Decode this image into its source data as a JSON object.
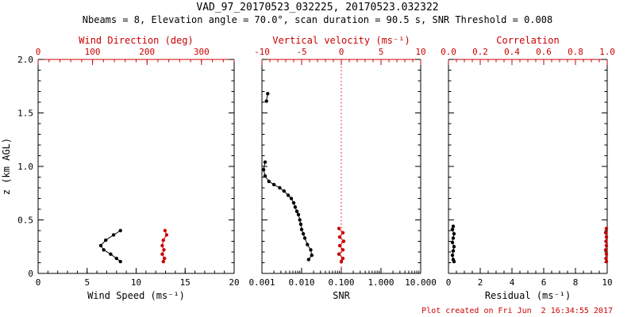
{
  "header": {
    "title": "VAD_97_20170523_032225, 20170523.032322",
    "subtitle": "Nbeams = 8, Elevation angle = 70.0°, scan duration = 90.5 s, SNR Threshold = 0.008"
  },
  "footer": {
    "created": "Plot created on Fri Jun  2 16:34:55 2017"
  },
  "colors": {
    "axis": "#000000",
    "secondary": "#cc0000",
    "background": "#ffffff"
  },
  "yaxis": {
    "label": "z (km AGL)",
    "lim": [
      0,
      2
    ],
    "minor_step": 0.1,
    "ticks": [
      {
        "v": 0,
        "l": "0"
      },
      {
        "v": 0.5,
        "l": "0.5"
      },
      {
        "v": 1,
        "l": "1.0"
      },
      {
        "v": 1.5,
        "l": "1.5"
      },
      {
        "v": 2,
        "l": "2.0"
      }
    ]
  },
  "chart_data": [
    {
      "type": "line",
      "panel": "wind",
      "show_ylabels": true,
      "bottom": {
        "label": "Wind Speed (ms⁻¹)",
        "scale": "linear",
        "lim": [
          0,
          20
        ],
        "minor_step": 1,
        "ticks": [
          {
            "v": 0,
            "l": "0"
          },
          {
            "v": 5,
            "l": "5"
          },
          {
            "v": 10,
            "l": "10"
          },
          {
            "v": 15,
            "l": "15"
          },
          {
            "v": 20,
            "l": "20"
          }
        ]
      },
      "top": {
        "label": "Wind Direction (deg)",
        "scale": "linear",
        "lim": [
          0,
          360
        ],
        "minor_step": 20,
        "ticks": [
          {
            "v": 0,
            "l": "0"
          },
          {
            "v": 100,
            "l": "100"
          },
          {
            "v": 200,
            "l": "200"
          },
          {
            "v": 300,
            "l": "300"
          }
        ]
      },
      "series": [
        {
          "name": "wind-speed",
          "axis": "bottom",
          "color": "#000000",
          "segments": [
            [
              [
                8.4,
                0.4
              ],
              [
                7.7,
                0.36
              ],
              [
                6.9,
                0.31
              ],
              [
                6.4,
                0.26
              ],
              [
                6.7,
                0.22
              ],
              [
                7.4,
                0.18
              ],
              [
                8.0,
                0.14
              ],
              [
                8.4,
                0.11
              ]
            ]
          ]
        },
        {
          "name": "wind-direction",
          "axis": "top",
          "color": "#cc0000",
          "segments": [
            [
              [
                233,
                0.4
              ],
              [
                236,
                0.36
              ],
              [
                230,
                0.31
              ],
              [
                228,
                0.26
              ],
              [
                231,
                0.22
              ],
              [
                228,
                0.18
              ],
              [
                232,
                0.14
              ],
              [
                230,
                0.11
              ]
            ]
          ]
        }
      ]
    },
    {
      "type": "line",
      "panel": "snr",
      "show_ylabels": false,
      "bottom": {
        "label": "SNR",
        "scale": "log",
        "lim": [
          0.001,
          10
        ],
        "ticks": [
          {
            "v": 0.001,
            "l": "0.001"
          },
          {
            "v": 0.01,
            "l": "0.010"
          },
          {
            "v": 0.1,
            "l": "0.100"
          },
          {
            "v": 1,
            "l": "1.000"
          },
          {
            "v": 10,
            "l": "10.000"
          }
        ]
      },
      "top": {
        "label": "Vertical velocity (ms⁻¹)",
        "scale": "linear",
        "lim": [
          -10,
          10
        ],
        "minor_step": 1,
        "ticks": [
          {
            "v": -10,
            "l": "-10"
          },
          {
            "v": -5,
            "l": "-5"
          },
          {
            "v": 0,
            "l": "0"
          },
          {
            "v": 5,
            "l": "5"
          },
          {
            "v": 10,
            "l": "10"
          }
        ]
      },
      "ref_line": {
        "axis": "top",
        "value": 0,
        "style": "dotted"
      },
      "series": [
        {
          "name": "snr-profile",
          "axis": "bottom",
          "color": "#000000",
          "segments": [
            [
              [
                0.0014,
                1.68
              ],
              [
                0.0013,
                1.61
              ]
            ],
            [
              [
                0.0012,
                1.04
              ],
              [
                0.0011,
                0.97
              ],
              [
                0.0012,
                0.91
              ],
              [
                0.0015,
                0.86
              ],
              [
                0.002,
                0.83
              ],
              [
                0.0028,
                0.8
              ],
              [
                0.0036,
                0.77
              ],
              [
                0.0046,
                0.73
              ],
              [
                0.0055,
                0.7
              ],
              [
                0.0063,
                0.66
              ],
              [
                0.0069,
                0.62
              ],
              [
                0.0076,
                0.58
              ],
              [
                0.0083,
                0.55
              ],
              [
                0.009,
                0.5
              ],
              [
                0.0095,
                0.46
              ],
              [
                0.01,
                0.41
              ],
              [
                0.011,
                0.37
              ],
              [
                0.012,
                0.33
              ],
              [
                0.014,
                0.27
              ],
              [
                0.017,
                0.22
              ],
              [
                0.018,
                0.17
              ],
              [
                0.015,
                0.13
              ]
            ]
          ]
        },
        {
          "name": "vertical-velocity",
          "axis": "top",
          "color": "#cc0000",
          "segments": [
            [
              [
                -0.3,
                0.42
              ],
              [
                0.2,
                0.38
              ],
              [
                -0.2,
                0.34
              ],
              [
                0.3,
                0.3
              ],
              [
                -0.2,
                0.26
              ],
              [
                0.2,
                0.22
              ],
              [
                -0.3,
                0.18
              ],
              [
                0.2,
                0.14
              ],
              [
                0.0,
                0.11
              ]
            ]
          ]
        }
      ]
    },
    {
      "type": "line",
      "panel": "residual",
      "show_ylabels": false,
      "bottom": {
        "label": "Residual (ms⁻¹)",
        "scale": "linear",
        "lim": [
          0,
          10
        ],
        "minor_step": 0.5,
        "ticks": [
          {
            "v": 0,
            "l": "0"
          },
          {
            "v": 2,
            "l": "2"
          },
          {
            "v": 4,
            "l": "4"
          },
          {
            "v": 6,
            "l": "6"
          },
          {
            "v": 8,
            "l": "8"
          },
          {
            "v": 10,
            "l": "10"
          }
        ]
      },
      "top": {
        "label": "Correlation",
        "scale": "linear",
        "lim": [
          0,
          1
        ],
        "minor_step": 0.05,
        "ticks": [
          {
            "v": 0,
            "l": "0.0"
          },
          {
            "v": 0.2,
            "l": "0.2"
          },
          {
            "v": 0.4,
            "l": "0.4"
          },
          {
            "v": 0.6,
            "l": "0.6"
          },
          {
            "v": 0.8,
            "l": "0.8"
          },
          {
            "v": 1,
            "l": "1.0"
          }
        ]
      },
      "series": [
        {
          "name": "residual",
          "axis": "bottom",
          "color": "#000000",
          "segments": [
            [
              [
                0.3,
                0.44
              ],
              [
                0.25,
                0.41
              ],
              [
                0.35,
                0.37
              ],
              [
                0.3,
                0.33
              ],
              [
                0.25,
                0.29
              ],
              [
                0.35,
                0.25
              ],
              [
                0.3,
                0.21
              ],
              [
                0.25,
                0.17
              ],
              [
                0.3,
                0.13
              ],
              [
                0.35,
                0.11
              ]
            ]
          ]
        },
        {
          "name": "correlation",
          "axis": "top",
          "color": "#cc0000",
          "segments": [
            [
              [
                0.995,
                0.42
              ],
              [
                0.99,
                0.38
              ],
              [
                0.995,
                0.34
              ],
              [
                0.992,
                0.3
              ],
              [
                0.995,
                0.26
              ],
              [
                0.99,
                0.22
              ],
              [
                0.995,
                0.18
              ],
              [
                0.992,
                0.14
              ],
              [
                0.995,
                0.11
              ]
            ]
          ]
        }
      ]
    }
  ]
}
